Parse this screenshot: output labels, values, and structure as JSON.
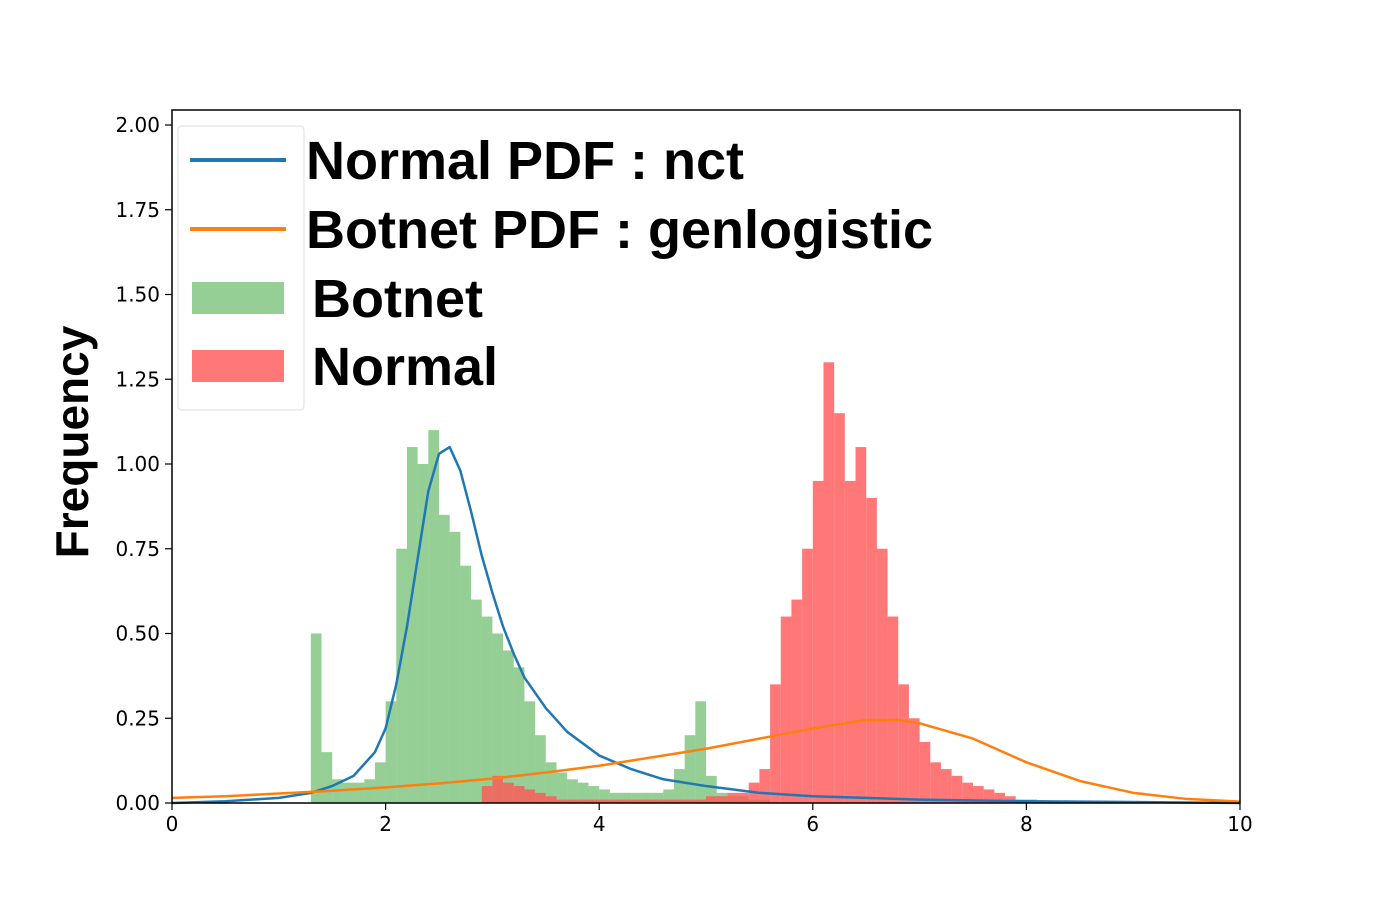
{
  "chart_data": {
    "type": "bar",
    "ylabel": "Frequency",
    "xlim": [
      0,
      10
    ],
    "ylim": [
      0,
      2.0
    ],
    "x_ticks": [
      "0",
      "2",
      "4",
      "6",
      "8",
      "10"
    ],
    "y_ticks": [
      "0.00",
      "0.25",
      "0.50",
      "0.75",
      "1.00",
      "1.25",
      "1.50",
      "1.75",
      "2.00"
    ],
    "grid": false,
    "legend_position": "top-left",
    "legend": [
      {
        "label": "Normal PDF : nct",
        "kind": "line",
        "color": "#1f77b4"
      },
      {
        "label": "Botnet PDF : genlogistic",
        "kind": "line",
        "color": "#ff7f0e"
      },
      {
        "label": "Botnet",
        "kind": "patch",
        "color": "#2ca02c"
      },
      {
        "label": "Normal",
        "kind": "patch",
        "color": "#ff5555"
      }
    ],
    "histograms": [
      {
        "name": "Botnet",
        "color": "#2ca02c",
        "opacity": 0.5,
        "bin_edges_range": [
          1.3,
          5.6
        ],
        "bin_width": 0.1,
        "x": [
          1.35,
          1.45,
          1.55,
          1.65,
          1.75,
          1.85,
          1.95,
          2.05,
          2.15,
          2.25,
          2.35,
          2.45,
          2.55,
          2.65,
          2.75,
          2.85,
          2.95,
          3.05,
          3.15,
          3.25,
          3.35,
          3.45,
          3.55,
          3.65,
          3.75,
          3.85,
          3.95,
          4.05,
          4.15,
          4.25,
          4.35,
          4.45,
          4.55,
          4.65,
          4.75,
          4.85,
          4.95,
          5.05,
          5.15,
          5.25,
          5.35,
          5.45,
          5.55
        ],
        "values": [
          0.5,
          0.15,
          0.07,
          0.06,
          0.06,
          0.07,
          0.12,
          0.3,
          0.75,
          1.05,
          1.0,
          1.1,
          0.85,
          0.8,
          0.7,
          0.6,
          0.55,
          0.5,
          0.45,
          0.4,
          0.3,
          0.2,
          0.12,
          0.09,
          0.07,
          0.06,
          0.05,
          0.04,
          0.03,
          0.03,
          0.03,
          0.03,
          0.03,
          0.04,
          0.1,
          0.2,
          0.3,
          0.08,
          0.03,
          0.02,
          0.02,
          0.01,
          0.01
        ]
      },
      {
        "name": "Normal",
        "color": "#ff5555",
        "opacity": 0.8,
        "bin_edges_range": [
          2.9,
          8.1
        ],
        "bin_width": 0.1,
        "x": [
          2.95,
          3.05,
          3.15,
          3.25,
          3.35,
          3.45,
          3.55,
          3.65,
          3.75,
          3.85,
          3.95,
          4.05,
          4.15,
          4.25,
          4.35,
          4.45,
          4.55,
          4.65,
          4.75,
          4.85,
          4.95,
          5.05,
          5.15,
          5.25,
          5.35,
          5.45,
          5.55,
          5.65,
          5.75,
          5.85,
          5.95,
          6.05,
          6.15,
          6.25,
          6.35,
          6.45,
          6.55,
          6.65,
          6.75,
          6.85,
          6.95,
          7.05,
          7.15,
          7.25,
          7.35,
          7.45,
          7.55,
          7.65,
          7.75,
          7.85,
          7.95,
          8.05
        ],
        "values": [
          0.05,
          0.08,
          0.06,
          0.05,
          0.04,
          0.03,
          0.02,
          0.01,
          0.01,
          0.01,
          0.01,
          0.01,
          0.01,
          0.01,
          0.01,
          0.01,
          0.01,
          0.01,
          0.01,
          0.01,
          0.01,
          0.02,
          0.02,
          0.03,
          0.03,
          0.06,
          0.1,
          0.35,
          0.55,
          0.6,
          0.75,
          0.95,
          1.3,
          1.15,
          0.95,
          1.05,
          0.9,
          0.75,
          0.55,
          0.35,
          0.25,
          0.18,
          0.12,
          0.1,
          0.08,
          0.06,
          0.05,
          0.04,
          0.03,
          0.02,
          0.01,
          0.01
        ]
      }
    ],
    "series": [
      {
        "name": "Normal PDF : nct",
        "color": "#1f77b4",
        "x": [
          0,
          0.5,
          1.0,
          1.3,
          1.5,
          1.7,
          1.9,
          2.0,
          2.1,
          2.2,
          2.3,
          2.4,
          2.5,
          2.6,
          2.7,
          2.8,
          2.9,
          3.0,
          3.1,
          3.2,
          3.3,
          3.5,
          3.7,
          4.0,
          4.3,
          4.6,
          5.0,
          5.5,
          6.0,
          7.0,
          8.0,
          9.0,
          10.0
        ],
        "y": [
          0.0,
          0.005,
          0.015,
          0.03,
          0.05,
          0.08,
          0.15,
          0.22,
          0.35,
          0.52,
          0.72,
          0.92,
          1.03,
          1.05,
          0.98,
          0.86,
          0.73,
          0.62,
          0.52,
          0.44,
          0.37,
          0.28,
          0.21,
          0.14,
          0.1,
          0.07,
          0.05,
          0.03,
          0.02,
          0.01,
          0.005,
          0.003,
          0.0
        ]
      },
      {
        "name": "Botnet PDF : genlogistic",
        "color": "#ff7f0e",
        "x": [
          0,
          0.5,
          1.0,
          1.5,
          2.0,
          2.5,
          3.0,
          3.5,
          4.0,
          4.5,
          5.0,
          5.5,
          6.0,
          6.5,
          6.8,
          7.0,
          7.5,
          8.0,
          8.5,
          9.0,
          9.5,
          10.0
        ],
        "y": [
          0.015,
          0.02,
          0.028,
          0.036,
          0.046,
          0.058,
          0.072,
          0.09,
          0.11,
          0.135,
          0.16,
          0.19,
          0.22,
          0.245,
          0.245,
          0.235,
          0.19,
          0.12,
          0.065,
          0.03,
          0.012,
          0.004
        ]
      }
    ]
  }
}
